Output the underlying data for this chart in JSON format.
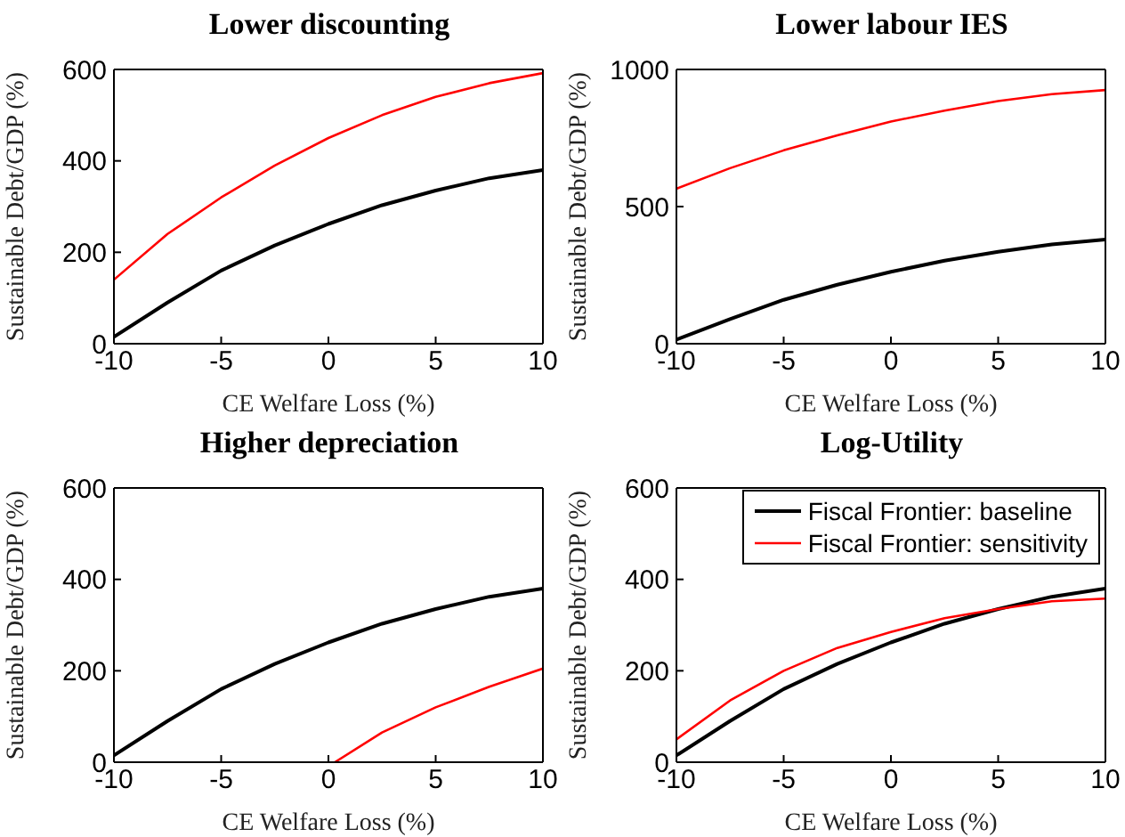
{
  "chart_data": [
    {
      "type": "line",
      "title": "Lower discounting",
      "xlabel": "CE Welfare Loss (%)",
      "ylabel": "Sustainable Debt/GDP (%)",
      "x": [
        -10,
        -7.5,
        -5,
        -2.5,
        0,
        2.5,
        5,
        7.5,
        10
      ],
      "xlim": [
        -10,
        10
      ],
      "xticks": [
        -10,
        -5,
        0,
        5,
        10
      ],
      "ylim": [
        0,
        600
      ],
      "yticks": [
        0,
        200,
        400,
        600
      ],
      "grid": false,
      "legend": false,
      "marker": "none",
      "line_style": "solid",
      "series": [
        {
          "color": "#000000",
          "values": [
            15,
            90,
            160,
            215,
            262,
            303,
            335,
            362,
            380
          ]
        },
        {
          "color": "#ff0000",
          "values": [
            140,
            240,
            320,
            390,
            450,
            500,
            540,
            570,
            592
          ]
        }
      ]
    },
    {
      "type": "line",
      "title": "Lower labour IES",
      "xlabel": "CE Welfare Loss (%)",
      "ylabel": "Sustainable Debt/GDP (%)",
      "x": [
        -10,
        -7.5,
        -5,
        -2.5,
        0,
        2.5,
        5,
        7.5,
        10
      ],
      "xlim": [
        -10,
        10
      ],
      "xticks": [
        -10,
        -5,
        0,
        5,
        10
      ],
      "ylim": [
        0,
        1000
      ],
      "yticks": [
        0,
        500,
        1000
      ],
      "grid": false,
      "legend": false,
      "marker": "none",
      "line_style": "solid",
      "series": [
        {
          "color": "#000000",
          "values": [
            15,
            90,
            160,
            215,
            262,
            303,
            335,
            362,
            380
          ]
        },
        {
          "color": "#ff0000",
          "values": [
            565,
            640,
            705,
            760,
            810,
            850,
            885,
            910,
            925
          ]
        }
      ]
    },
    {
      "type": "line",
      "title": "Higher depreciation",
      "xlabel": "CE Welfare Loss (%)",
      "ylabel": "Sustainable Debt/GDP (%)",
      "x": [
        -10,
        -7.5,
        -5,
        -2.5,
        0,
        2.5,
        5,
        7.5,
        10
      ],
      "xlim": [
        -10,
        10
      ],
      "xticks": [
        -10,
        -5,
        0,
        5,
        10
      ],
      "ylim": [
        0,
        600
      ],
      "yticks": [
        0,
        200,
        400,
        600
      ],
      "grid": false,
      "legend": false,
      "marker": "none",
      "line_style": "solid",
      "series": [
        {
          "color": "#000000",
          "values": [
            15,
            90,
            160,
            215,
            262,
            303,
            335,
            362,
            380
          ]
        },
        {
          "color": "#ff0000",
          "x": [
            0.3,
            2.5,
            5,
            7.5,
            10
          ],
          "values": [
            0,
            65,
            120,
            165,
            205
          ]
        }
      ]
    },
    {
      "type": "line",
      "title": "Log-Utility",
      "xlabel": "CE Welfare Loss (%)",
      "ylabel": "Sustainable Debt/GDP (%)",
      "x": [
        -10,
        -7.5,
        -5,
        -2.5,
        0,
        2.5,
        5,
        7.5,
        10
      ],
      "xlim": [
        -10,
        10
      ],
      "xticks": [
        -10,
        -5,
        0,
        5,
        10
      ],
      "ylim": [
        0,
        600
      ],
      "yticks": [
        0,
        200,
        400,
        600
      ],
      "grid": false,
      "legend": "top right",
      "marker": "none",
      "line_style": "solid",
      "series": [
        {
          "name": "Fiscal Frontier: baseline",
          "color": "#000000",
          "values": [
            15,
            90,
            160,
            215,
            262,
            303,
            335,
            362,
            380
          ]
        },
        {
          "name": "Fiscal Frontier: sensitivity",
          "color": "#ff0000",
          "values": [
            50,
            135,
            200,
            250,
            285,
            315,
            335,
            352,
            358
          ]
        }
      ]
    }
  ]
}
